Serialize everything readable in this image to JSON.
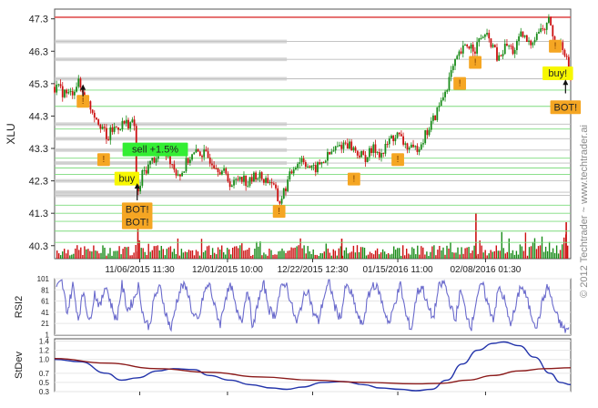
{
  "watermark": "© 2012 Techtrader ~ www.techtrader.ai",
  "colors": {
    "up": "#1a8c1a",
    "down": "#cc1111",
    "rsi_line": "#6a6acc",
    "sd_blue": "#2233aa",
    "sd_red": "#8b1a1a",
    "band": "#bdbdbd",
    "green_level": "#7ddc7d",
    "red_level": "#e05050",
    "marker_fill": "#f5a623",
    "buy_fill": "#f7f700",
    "sell_fill": "#33ee33"
  },
  "chart_data": [
    {
      "type": "candlestick",
      "ylabel": "XLU",
      "ylim": [
        39.9,
        47.6
      ],
      "yticks": [
        "47.3",
        "46.3",
        "45.3",
        "44.3",
        "43.3",
        "42.3",
        "41.3",
        "40.3"
      ],
      "ytick_values": [
        47.3,
        46.3,
        45.3,
        44.3,
        43.3,
        42.3,
        41.3,
        40.3
      ],
      "xticks": [
        "11/06/2015 11:30",
        "12/01/2015 10:00",
        "12/22/2015 12:30",
        "01/15/2016 11:00",
        "02/08/2016 01:30"
      ],
      "xtick_positions": [
        0.165,
        0.335,
        0.5,
        0.665,
        0.835
      ],
      "price_path": [
        [
          0.0,
          45.2
        ],
        [
          0.015,
          45.05
        ],
        [
          0.03,
          44.95
        ],
        [
          0.045,
          45.35
        ],
        [
          0.055,
          45.0
        ],
        [
          0.065,
          44.7
        ],
        [
          0.08,
          44.3
        ],
        [
          0.095,
          43.9
        ],
        [
          0.1,
          43.5
        ],
        [
          0.11,
          43.85
        ],
        [
          0.13,
          44.05
        ],
        [
          0.145,
          44.1
        ],
        [
          0.155,
          44.0
        ],
        [
          0.16,
          41.7
        ],
        [
          0.17,
          42.5
        ],
        [
          0.19,
          42.95
        ],
        [
          0.205,
          43.2
        ],
        [
          0.22,
          43.1
        ],
        [
          0.235,
          42.6
        ],
        [
          0.245,
          42.5
        ],
        [
          0.26,
          43.0
        ],
        [
          0.28,
          43.2
        ],
        [
          0.3,
          43.0
        ],
        [
          0.325,
          42.6
        ],
        [
          0.345,
          42.15
        ],
        [
          0.36,
          42.5
        ],
        [
          0.375,
          42.2
        ],
        [
          0.39,
          42.5
        ],
        [
          0.405,
          42.35
        ],
        [
          0.42,
          42.3
        ],
        [
          0.435,
          41.6
        ],
        [
          0.45,
          42.2
        ],
        [
          0.465,
          42.8
        ],
        [
          0.48,
          43.0
        ],
        [
          0.5,
          42.6
        ],
        [
          0.52,
          42.9
        ],
        [
          0.545,
          43.3
        ],
        [
          0.565,
          43.5
        ],
        [
          0.585,
          43.2
        ],
        [
          0.6,
          43.0
        ],
        [
          0.62,
          43.3
        ],
        [
          0.635,
          43.1
        ],
        [
          0.65,
          43.6
        ],
        [
          0.665,
          43.7
        ],
        [
          0.68,
          43.4
        ],
        [
          0.695,
          43.2
        ],
        [
          0.71,
          43.5
        ],
        [
          0.725,
          43.9
        ],
        [
          0.74,
          44.4
        ],
        [
          0.755,
          45.0
        ],
        [
          0.77,
          45.7
        ],
        [
          0.785,
          46.2
        ],
        [
          0.8,
          46.5
        ],
        [
          0.815,
          46.4
        ],
        [
          0.83,
          46.8
        ],
        [
          0.845,
          46.6
        ],
        [
          0.86,
          46.0
        ],
        [
          0.875,
          46.5
        ],
        [
          0.89,
          46.3
        ],
        [
          0.905,
          46.8
        ],
        [
          0.92,
          46.5
        ],
        [
          0.935,
          46.9
        ],
        [
          0.95,
          47.0
        ],
        [
          0.96,
          47.3
        ],
        [
          0.97,
          46.3
        ],
        [
          0.98,
          46.7
        ],
        [
          0.99,
          46.2
        ],
        [
          1.0,
          45.4
        ]
      ],
      "levels": {
        "red": [
          47.35
        ],
        "gray": [
          46.6,
          46.05,
          45.45,
          44.05,
          43.6,
          43.25,
          42.85,
          42.3,
          41.95,
          41.85
        ],
        "green": [
          45.1,
          44.6,
          43.9,
          43.0,
          42.7,
          42.5,
          41.55,
          41.3,
          41.05,
          40.75,
          40.4
        ]
      },
      "annotations": [
        {
          "kind": "marker",
          "text": "!",
          "x": 0.055,
          "y": 44.7
        },
        {
          "kind": "marker",
          "text": "!",
          "x": 0.095,
          "y": 42.9
        },
        {
          "kind": "marker",
          "text": "!",
          "x": 0.435,
          "y": 41.3
        },
        {
          "kind": "marker",
          "text": "!",
          "x": 0.58,
          "y": 42.3
        },
        {
          "kind": "marker",
          "text": "!",
          "x": 0.665,
          "y": 42.9
        },
        {
          "kind": "marker",
          "text": "!",
          "x": 0.785,
          "y": 45.25
        },
        {
          "kind": "marker",
          "text": "!",
          "x": 0.815,
          "y": 45.9
        },
        {
          "kind": "marker",
          "text": "!",
          "x": 0.97,
          "y": 46.4
        },
        {
          "kind": "buy",
          "text": "buy",
          "x": 0.14,
          "y": 42.3
        },
        {
          "kind": "sell",
          "text": "sell +1.5%",
          "x": 0.195,
          "y": 43.2
        },
        {
          "kind": "bot",
          "text": "BOT!",
          "x": 0.16,
          "y": 41.35
        },
        {
          "kind": "bot",
          "text": "BOT!",
          "x": 0.16,
          "y": 40.95
        },
        {
          "kind": "buy",
          "text": "buy!",
          "x": 0.975,
          "y": 45.55
        },
        {
          "kind": "bot",
          "text": "BOT!",
          "x": 0.99,
          "y": 44.5
        }
      ]
    },
    {
      "type": "line",
      "ylabel": "RSI2",
      "ylim": [
        0,
        101
      ],
      "yticks": [
        "101",
        "81",
        "61",
        "41",
        "21",
        "1"
      ],
      "ytick_values": [
        101,
        81,
        61,
        41,
        21,
        1
      ],
      "series": [
        {
          "values": [
            85,
            95,
            40,
            90,
            30,
            80,
            20,
            75,
            50,
            92,
            55,
            25,
            90,
            45,
            60,
            88,
            30,
            15,
            70,
            85,
            40,
            10,
            60,
            90,
            80,
            35,
            25,
            75,
            92,
            50,
            20,
            70,
            88,
            40,
            30,
            85,
            10,
            65,
            90,
            45,
            35,
            80,
            95,
            55,
            20,
            60,
            85,
            40,
            25,
            70,
            95,
            50,
            30,
            88,
            75,
            40,
            15,
            65,
            92,
            80,
            45,
            20,
            60,
            90,
            35,
            10,
            75,
            88,
            50,
            30,
            85,
            95,
            60,
            25,
            80,
            40,
            15,
            70,
            92,
            55,
            30,
            85,
            65,
            20,
            45,
            90,
            70,
            35,
            15,
            60,
            88,
            50,
            25,
            10
          ]
        }
      ]
    },
    {
      "type": "line",
      "ylabel": "StDev",
      "ylim": [
        0.3,
        1.45
      ],
      "yticks": [
        "1.4",
        "1.2",
        "1.0",
        "0.7",
        "0.5",
        "0.3"
      ],
      "ytick_values": [
        1.4,
        1.2,
        1.0,
        0.7,
        0.5,
        0.3
      ],
      "series": [
        {
          "points": [
            [
              0.0,
              1.0
            ],
            [
              0.05,
              0.95
            ],
            [
              0.1,
              0.7
            ],
            [
              0.13,
              0.55
            ],
            [
              0.16,
              0.6
            ],
            [
              0.2,
              0.75
            ],
            [
              0.23,
              0.8
            ],
            [
              0.27,
              0.78
            ],
            [
              0.3,
              0.65
            ],
            [
              0.34,
              0.55
            ],
            [
              0.38,
              0.45
            ],
            [
              0.42,
              0.38
            ],
            [
              0.45,
              0.35
            ],
            [
              0.48,
              0.4
            ],
            [
              0.52,
              0.5
            ],
            [
              0.56,
              0.52
            ],
            [
              0.6,
              0.45
            ],
            [
              0.63,
              0.38
            ],
            [
              0.67,
              0.35
            ],
            [
              0.7,
              0.32
            ],
            [
              0.73,
              0.35
            ],
            [
              0.76,
              0.55
            ],
            [
              0.79,
              0.9
            ],
            [
              0.82,
              1.2
            ],
            [
              0.85,
              1.35
            ],
            [
              0.87,
              1.38
            ],
            [
              0.9,
              1.3
            ],
            [
              0.93,
              1.05
            ],
            [
              0.96,
              0.7
            ],
            [
              0.98,
              0.5
            ],
            [
              1.0,
              0.45
            ]
          ]
        },
        {
          "points": [
            [
              0.0,
              1.02
            ],
            [
              0.1,
              0.92
            ],
            [
              0.2,
              0.8
            ],
            [
              0.3,
              0.72
            ],
            [
              0.4,
              0.62
            ],
            [
              0.5,
              0.55
            ],
            [
              0.6,
              0.5
            ],
            [
              0.7,
              0.47
            ],
            [
              0.75,
              0.48
            ],
            [
              0.8,
              0.55
            ],
            [
              0.85,
              0.65
            ],
            [
              0.9,
              0.75
            ],
            [
              0.95,
              0.8
            ],
            [
              1.0,
              0.82
            ]
          ]
        }
      ]
    }
  ]
}
